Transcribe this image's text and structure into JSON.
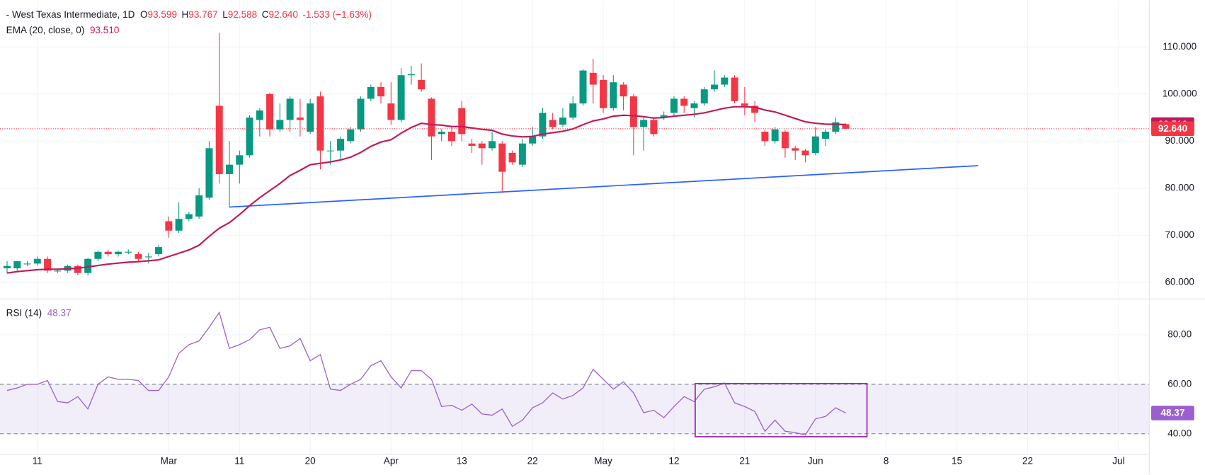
{
  "chart_data": [
    {
      "type": "candlestick",
      "legend": {
        "title": "West Texas Intermediate, 1D",
        "fields": [
          {
            "key": "O",
            "value": "93.599"
          },
          {
            "key": "H",
            "value": "93.767"
          },
          {
            "key": "L",
            "value": "92.588"
          },
          {
            "key": "C",
            "value": "92.640"
          }
        ],
        "change": "-1.533 (−1.63%)"
      },
      "up_color": "#089981",
      "down_color": "#f23645",
      "open": [
        63,
        63,
        64,
        64,
        65,
        62.5,
        62.5,
        63.5,
        62,
        65,
        66.5,
        66,
        66.5,
        66,
        65.5,
        66,
        73,
        71,
        73.5,
        74,
        78,
        97.5,
        83,
        85,
        87,
        94.5,
        100,
        92.5,
        94.5,
        95,
        92,
        99.5,
        88,
        88,
        90,
        92.5,
        99,
        101.5,
        98,
        94.5,
        104,
        103,
        99,
        91.5,
        92,
        97,
        89.5,
        89.5,
        88.5,
        89.5,
        87.5,
        85,
        89.5,
        91,
        94.5,
        93.5,
        95,
        98,
        104.5,
        103,
        97,
        102,
        99.5,
        93,
        94.5,
        95,
        96,
        99,
        97,
        98,
        101,
        102,
        103.5,
        98,
        97.5,
        92,
        90,
        92,
        88.5,
        88,
        87.5,
        90.5,
        92,
        93.599
      ],
      "high": [
        64.5,
        64.5,
        64.5,
        65.5,
        65.5,
        63,
        63.8,
        63.8,
        65.2,
        66.8,
        67,
        66.8,
        67,
        66.5,
        66.3,
        68,
        74,
        77,
        75,
        80,
        90,
        113,
        90,
        88,
        95.5,
        97,
        100.3,
        98,
        99.5,
        99,
        99,
        100.5,
        90,
        91,
        93,
        99.5,
        102,
        102.5,
        102.5,
        105.5,
        106,
        106.5,
        99.3,
        92.5,
        93,
        98.5,
        90.5,
        90,
        92,
        90,
        88,
        90.5,
        93,
        97,
        96,
        97,
        99.5,
        105.3,
        107.5,
        104,
        104,
        102.5,
        100,
        95,
        95,
        96.3,
        99.5,
        99.5,
        98.5,
        101.5,
        105,
        104,
        104,
        101.5,
        98.5,
        92.5,
        93,
        92.3,
        89,
        88.3,
        93,
        92.5,
        95,
        93.767
      ],
      "low": [
        62,
        62.5,
        63.5,
        63.5,
        62,
        62,
        62,
        61.5,
        61.5,
        64.5,
        65.5,
        65.5,
        66,
        64.5,
        64,
        65.5,
        69.5,
        70.5,
        73,
        73.5,
        77.5,
        81,
        76,
        81,
        86.5,
        91,
        91,
        92,
        92,
        91,
        91.5,
        84,
        85,
        86,
        89.5,
        92,
        98.5,
        98,
        93.5,
        94,
        102,
        100.5,
        86,
        90,
        89,
        90,
        87.5,
        85,
        88,
        79,
        85,
        84.5,
        89,
        90.5,
        92.5,
        93,
        94.5,
        97.5,
        98,
        96,
        96.5,
        96.5,
        87,
        88,
        91,
        94.5,
        95.5,
        96,
        95,
        97.5,
        100.5,
        101.5,
        98,
        95.5,
        94,
        89,
        89.5,
        86.5,
        86,
        85.5,
        87,
        89,
        91.5,
        92.588
      ],
      "close": [
        63.5,
        64.5,
        64,
        65,
        62.5,
        62.5,
        63.5,
        62,
        65,
        66.5,
        66,
        66.5,
        66.5,
        65,
        65.5,
        67.5,
        71,
        73.5,
        74.5,
        78.5,
        88.5,
        83,
        85,
        87,
        95,
        96.5,
        92.5,
        94.5,
        99,
        94.5,
        98,
        88,
        88,
        90.5,
        92.5,
        99,
        101.5,
        99.5,
        94.5,
        104,
        104.2,
        101,
        91,
        92,
        90,
        91.5,
        89,
        88.5,
        90,
        83.5,
        85.5,
        89.5,
        91,
        96,
        93,
        95,
        98,
        105,
        102,
        97,
        102.5,
        99.5,
        93,
        94.5,
        91.5,
        95.5,
        99,
        97.5,
        98,
        101,
        102,
        103.5,
        98.5,
        97.5,
        96,
        90,
        92.5,
        88.5,
        88,
        87,
        91,
        92,
        94,
        92.64
      ],
      "ema": {
        "name": "EMA (20, close, 0)",
        "last_label": "93.510",
        "color": "#c2185b",
        "values": [
          62,
          62.3,
          62.5,
          62.7,
          62.8,
          62.8,
          62.9,
          63,
          63.3,
          63.6,
          63.9,
          64.1,
          64.3,
          64.4,
          64.6,
          64.8,
          65.5,
          66.2,
          66.9,
          67.9,
          69.8,
          71.5,
          72.7,
          74.4,
          76.3,
          78,
          79.5,
          81,
          82.7,
          83.8,
          85,
          85.3,
          85.6,
          86,
          86.6,
          87.6,
          88.9,
          89.8,
          90.3,
          91.7,
          92.9,
          93.8,
          93.5,
          93.4,
          93.1,
          93.1,
          92.8,
          92.5,
          92.3,
          91.5,
          91.1,
          90.9,
          91,
          91.5,
          91.8,
          92.1,
          92.6,
          93.5,
          94.3,
          94.7,
          95.3,
          95.5,
          95.4,
          95.2,
          94.9,
          95,
          95.3,
          95.5,
          95.7,
          96,
          96.5,
          97,
          97.3,
          97.3,
          97.2,
          96.6,
          96.2,
          95.5,
          94.8,
          94.1,
          93.8,
          93.6,
          93.6,
          93.51
        ]
      },
      "last_label": "92.640",
      "trendline": {
        "x": [
          22,
          96.1
        ],
        "y": [
          76,
          84.8
        ],
        "color": "#2962ff"
      },
      "xlim": [
        -0.7,
        113
      ],
      "ylim": [
        56.57,
        119.87
      ],
      "yticks": [
        {
          "value": 110,
          "label": "110.000"
        },
        {
          "value": 100,
          "label": "100.000"
        },
        {
          "value": 90,
          "label": "90.000"
        },
        {
          "value": 80,
          "label": "80.000"
        },
        {
          "value": 70,
          "label": "70.000"
        },
        {
          "value": 60,
          "label": "60.000"
        }
      ],
      "xticks": [
        {
          "value": 3,
          "label": "11"
        },
        {
          "value": 16,
          "label": "Mar"
        },
        {
          "value": 23,
          "label": "11"
        },
        {
          "value": 30,
          "label": "20"
        },
        {
          "value": 38,
          "label": "Apr"
        },
        {
          "value": 45,
          "label": "13"
        },
        {
          "value": 52,
          "label": "22"
        },
        {
          "value": 59,
          "label": "May"
        },
        {
          "value": 66,
          "label": "12"
        },
        {
          "value": 73,
          "label": "21"
        },
        {
          "value": 80,
          "label": "Jun"
        },
        {
          "value": 87,
          "label": "8"
        },
        {
          "value": 94,
          "label": "15"
        },
        {
          "value": 101,
          "label": "22"
        },
        {
          "value": 110,
          "label": "Jul"
        }
      ],
      "grid": true
    },
    {
      "type": "line",
      "name": "RSI (14)",
      "last_label": "48.37",
      "color": "#9c5fd0",
      "values": [
        57.5,
        58.5,
        60,
        60,
        61.5,
        53,
        52.5,
        55,
        50,
        60,
        63,
        62,
        62,
        61.5,
        57.5,
        57.5,
        63,
        72.5,
        76,
        77.5,
        83,
        89,
        74.5,
        76,
        78,
        82,
        83,
        74.5,
        75.5,
        78.5,
        69.5,
        72,
        58,
        57.5,
        60,
        62,
        67.5,
        69.5,
        63,
        58.5,
        65.5,
        65.5,
        62,
        51,
        51.5,
        49.5,
        52,
        48,
        47.5,
        50,
        43,
        45.5,
        50.5,
        52.5,
        56.5,
        54,
        55.5,
        58.5,
        66,
        62,
        58,
        61,
        56.5,
        48.5,
        49.5,
        46.5,
        51,
        55,
        53,
        58,
        59,
        60.5,
        52.5,
        51,
        49,
        41,
        45.5,
        41,
        40.5,
        39.5,
        46,
        47,
        50.5,
        48.37
      ],
      "band": [
        40,
        60
      ],
      "box": {
        "x": [
          68.1,
          85.1
        ],
        "y": [
          38.8,
          60.3
        ],
        "color": "#9c27b0"
      },
      "xlim": [
        -0.7,
        113
      ],
      "ylim": [
        31.9,
        94
      ],
      "yticks": [
        {
          "value": 80,
          "label": "80.00"
        },
        {
          "value": 60,
          "label": "60.00"
        },
        {
          "value": 40,
          "label": "40.00"
        }
      ]
    }
  ]
}
